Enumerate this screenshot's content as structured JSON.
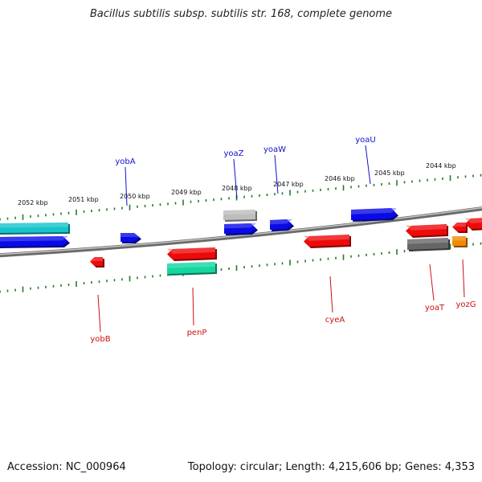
{
  "title": "Bacillus subtilis subsp. subtilis str. 168, complete genome",
  "footer": {
    "accession": "Accession: NC_000964",
    "topology": "Topology: circular; Length: 4,215,606 bp; Genes: 4,353"
  },
  "scale_labels": [
    "2052 kbp",
    "2051 kbp",
    "2050 kbp",
    "2049 kbp",
    "2048 kbp",
    "2047 kbp",
    "2046 kbp",
    "2045 kbp",
    "2044 kbp"
  ],
  "genes_top": [
    "yobA",
    "yoaZ",
    "yoaW",
    "yoaU"
  ],
  "genes_bottom": [
    "yobB",
    "penP",
    "cyeA",
    "yoaT",
    "yozG"
  ],
  "colors": {
    "label_top": "#1010cc",
    "label_bottom": "#cc1010",
    "backbone": "#888888",
    "ticks": "#2a7a2a",
    "cyan": "#17c4cc",
    "blue": "#0a0ae8",
    "red": "#ee0a0a",
    "grey_light": "#bdbdbd",
    "grey_dark": "#666666",
    "teal": "#14d6a0",
    "orange": "#f08a00"
  }
}
